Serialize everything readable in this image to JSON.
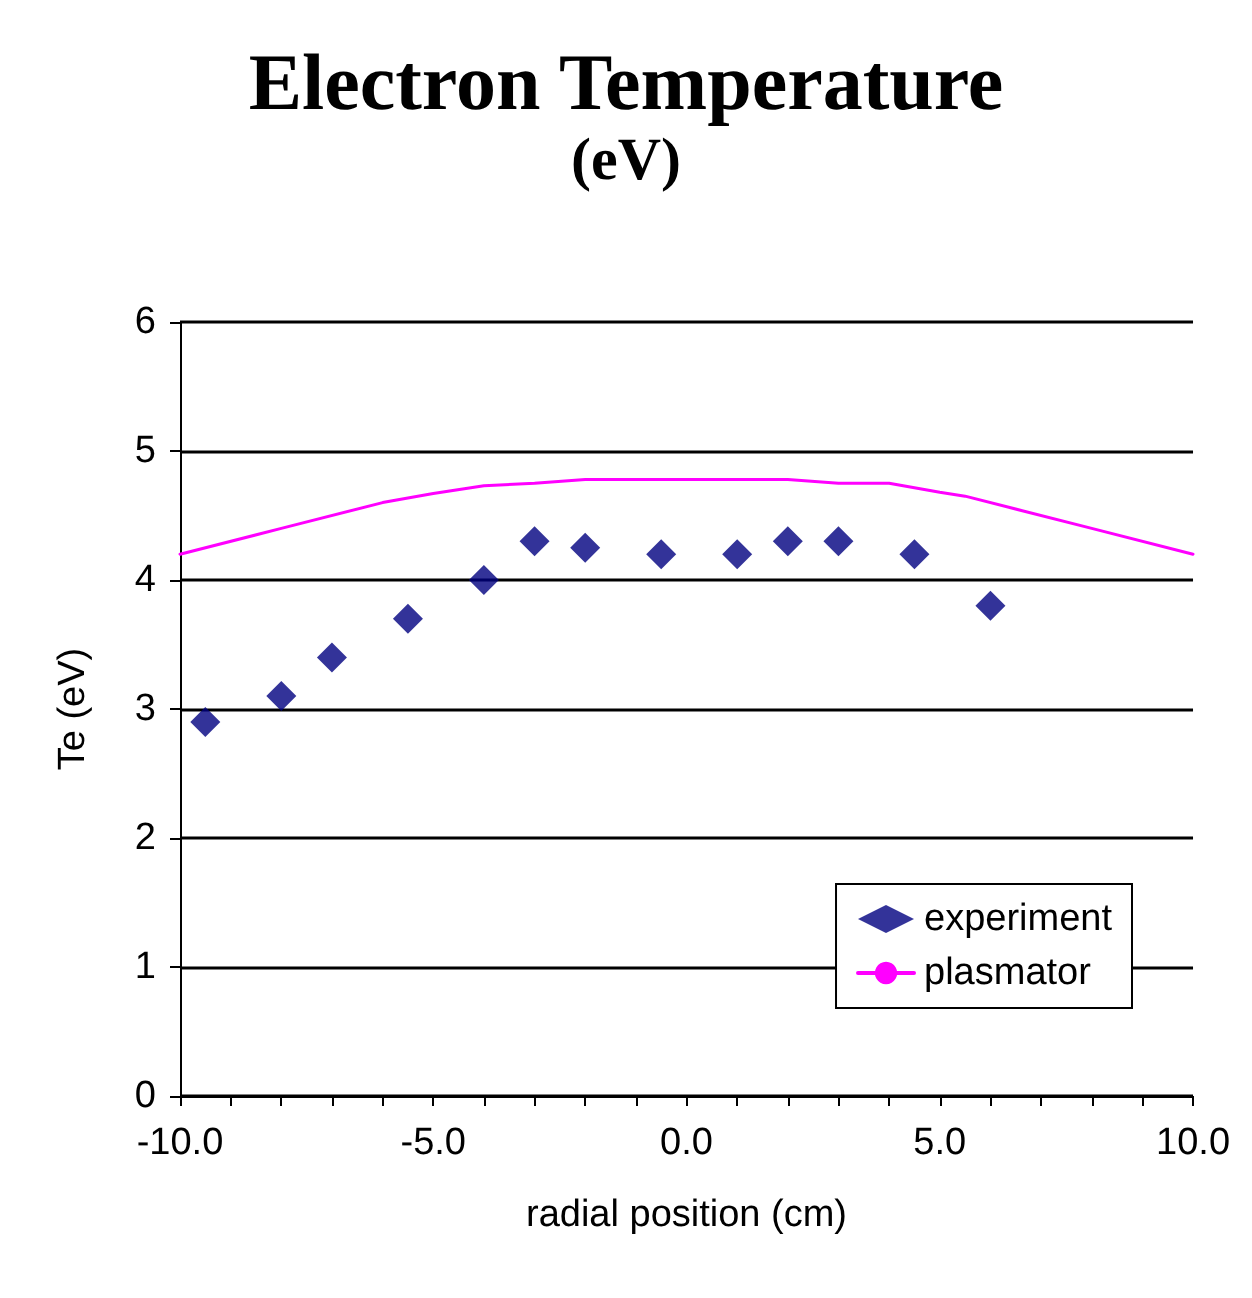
{
  "chart_data": {
    "type": "scatter",
    "title": "Electron Temperature",
    "subtitle": "(eV)",
    "xlabel": "radial position (cm)",
    "ylabel": "Te (eV)",
    "xlim": [
      -10,
      10
    ],
    "ylim": [
      0,
      6
    ],
    "xticks": [
      {
        "value": -10,
        "label": "-10.0"
      },
      {
        "value": -9,
        "label": null
      },
      {
        "value": -8,
        "label": null
      },
      {
        "value": -7,
        "label": null
      },
      {
        "value": -6,
        "label": null
      },
      {
        "value": -5,
        "label": "-5.0"
      },
      {
        "value": -4,
        "label": null
      },
      {
        "value": -3,
        "label": null
      },
      {
        "value": -2,
        "label": null
      },
      {
        "value": -1,
        "label": null
      },
      {
        "value": 0,
        "label": "0.0"
      },
      {
        "value": 1,
        "label": null
      },
      {
        "value": 2,
        "label": null
      },
      {
        "value": 3,
        "label": null
      },
      {
        "value": 4,
        "label": null
      },
      {
        "value": 5,
        "label": "5.0"
      },
      {
        "value": 6,
        "label": null
      },
      {
        "value": 7,
        "label": null
      },
      {
        "value": 8,
        "label": null
      },
      {
        "value": 9,
        "label": null
      },
      {
        "value": 10,
        "label": "10.0"
      }
    ],
    "yticks": [
      0,
      1,
      2,
      3,
      4,
      5,
      6
    ],
    "grid": "y",
    "legend": "bottom right",
    "series": [
      {
        "name": "experiment",
        "marker": "diamond",
        "color": "#000080",
        "x": [
          -9.5,
          -8,
          -7,
          -5.5,
          -4,
          -3,
          -2,
          -0.5,
          1,
          2,
          3,
          4.5,
          6
        ],
        "values": [
          2.9,
          3.1,
          3.4,
          3.7,
          4.0,
          4.3,
          4.25,
          4.2,
          4.2,
          4.3,
          4.3,
          4.2,
          3.8
        ]
      },
      {
        "name": "plasmator",
        "type": "line",
        "marker": "none",
        "line_style": "solid",
        "color": "#ff00ff",
        "x": [
          -10,
          -8,
          -6,
          -5,
          -4,
          -3,
          -2,
          0,
          2,
          3,
          4,
          5,
          5.5,
          8,
          10
        ],
        "values": [
          4.2,
          4.4,
          4.6,
          4.67,
          4.73,
          4.75,
          4.78,
          4.78,
          4.78,
          4.75,
          4.75,
          4.68,
          4.65,
          4.4,
          4.2
        ]
      }
    ]
  }
}
